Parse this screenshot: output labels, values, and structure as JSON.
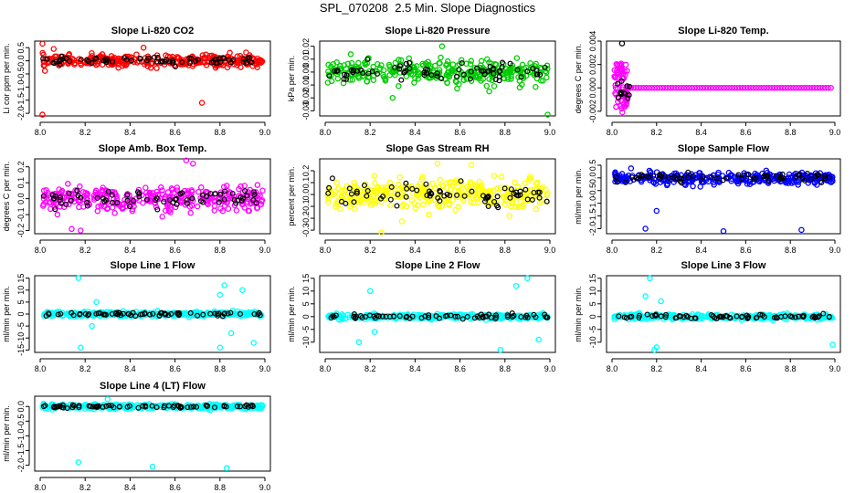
{
  "figure_title": "SPL_070208  2.5 Min. Slope Diagnostics",
  "chart_data": [
    {
      "type": "scatter",
      "title": "Slope Li-820 CO2",
      "ylabel": "Li cor ppm per min.",
      "color": "#ff0000",
      "xlim": [
        8.0,
        9.0
      ],
      "ylim": [
        -2.1,
        0.75
      ],
      "x_ticks": [
        "8.0",
        "8.2",
        "8.4",
        "8.6",
        "8.8",
        "9.0"
      ],
      "y_ticks": [
        -2.0,
        -1.5,
        -1.0,
        -0.5,
        0.0,
        0.5
      ],
      "y_tick_labels": [
        "-2.0",
        "-1.5",
        "-1.0",
        "-0.5",
        "0.0",
        "0.5"
      ],
      "spread": 0.22,
      "center": 0.0,
      "outliers": [
        [
          8.01,
          -2.05
        ],
        [
          8.01,
          0.65
        ],
        [
          8.72,
          -1.6
        ],
        [
          8.06,
          0.45
        ],
        [
          8.46,
          0.5
        ]
      ]
    },
    {
      "type": "scatter",
      "title": "Slope Li-820 Pressure",
      "ylabel": "kPa per min.",
      "color": "#00cc00",
      "xlim": [
        8.0,
        9.0
      ],
      "ylim": [
        -0.034,
        0.024
      ],
      "x_ticks": [
        "8.0",
        "8.2",
        "8.4",
        "8.6",
        "8.8",
        "9.0"
      ],
      "y_ticks": [
        -0.03,
        -0.02,
        -0.01,
        0.0,
        0.01,
        0.02
      ],
      "y_tick_labels": [
        "-0.03",
        "-0.02",
        "-0.01",
        "0.00",
        "0.01",
        "0.02"
      ],
      "spread": 0.009,
      "center": 0.0,
      "outliers": [
        [
          8.99,
          -0.033
        ],
        [
          8.3,
          -0.02
        ],
        [
          8.73,
          -0.015
        ],
        [
          8.52,
          0.02
        ]
      ]
    },
    {
      "type": "scatter",
      "title": "Slope Li-820 Temp.",
      "ylabel": "degrees C per min.",
      "color": "#ff00ff",
      "xlim": [
        8.0,
        9.0
      ],
      "ylim": [
        -0.0024,
        0.004
      ],
      "x_ticks": [
        "8.0",
        "8.2",
        "8.4",
        "8.6",
        "8.8",
        "9.0"
      ],
      "y_ticks": [
        -0.002,
        0.0,
        0.002,
        0.004
      ],
      "y_tick_labels": [
        "-0.002",
        "0.000",
        "0.002",
        "0.004"
      ],
      "spread": 0.0,
      "center": 0.0,
      "outliers": [
        [
          8.045,
          0.0038
        ]
      ]
    },
    {
      "type": "scatter",
      "title": "Slope Amb. Box Temp.",
      "ylabel": "degrees C per min.",
      "color": "#ff00ff",
      "xlim": [
        8.0,
        9.0
      ],
      "ylim": [
        -0.22,
        0.25
      ],
      "x_ticks": [
        "8.0",
        "8.2",
        "8.4",
        "8.6",
        "8.8",
        "9.0"
      ],
      "y_ticks": [
        -0.2,
        -0.1,
        0.0,
        0.1,
        0.2
      ],
      "y_tick_labels": [
        "-0.2",
        "-0.1",
        "0.0",
        "0.1",
        "0.2"
      ],
      "spread": 0.08,
      "center": 0.0,
      "outliers": [
        [
          8.65,
          0.24
        ],
        [
          8.68,
          0.22
        ],
        [
          8.14,
          -0.19
        ],
        [
          8.18,
          -0.2
        ]
      ]
    },
    {
      "type": "scatter",
      "title": "Slope Gas Stream RH",
      "ylabel": "percent per min.",
      "color": "#ffff00",
      "xlim": [
        8.0,
        9.0
      ],
      "ylim": [
        -0.33,
        0.3
      ],
      "x_ticks": [
        "8.0",
        "8.2",
        "8.4",
        "8.6",
        "8.8",
        "9.0"
      ],
      "y_ticks": [
        -0.3,
        -0.2,
        -0.1,
        0.0,
        0.1,
        0.2
      ],
      "y_tick_labels": [
        "-0.3",
        "-0.2",
        "-0.1",
        "0.0",
        "0.1",
        "0.2"
      ],
      "spread": 0.12,
      "center": 0.0,
      "outliers": [
        [
          8.25,
          -0.32
        ],
        [
          8.5,
          0.26
        ],
        [
          8.65,
          0.25
        ]
      ]
    },
    {
      "type": "scatter",
      "title": "Slope Sample Flow",
      "ylabel": "ml/min per min.",
      "color": "#0000ff",
      "xlim": [
        8.0,
        9.0
      ],
      "ylim": [
        -2.2,
        0.75
      ],
      "x_ticks": [
        "8.0",
        "8.2",
        "8.4",
        "8.6",
        "8.8",
        "9.0"
      ],
      "y_ticks": [
        -2.0,
        -1.5,
        -1.0,
        -0.5,
        0.0,
        0.5
      ],
      "y_tick_labels": [
        "-2.0",
        "-1.5",
        "-1.0",
        "-0.5",
        "0.0",
        "0.5"
      ],
      "spread": 0.22,
      "center": 0.0,
      "outliers": [
        [
          8.15,
          -2.0
        ],
        [
          8.5,
          -2.1
        ],
        [
          8.85,
          -2.05
        ],
        [
          8.2,
          -1.3
        ]
      ]
    },
    {
      "type": "scatter",
      "title": "Slope Line 1 Flow",
      "ylabel": "ml/min per min.",
      "color": "#00ffff",
      "xlim": [
        8.0,
        9.0
      ],
      "ylim": [
        -16,
        16
      ],
      "x_ticks": [
        "8.0",
        "8.2",
        "8.4",
        "8.6",
        "8.8",
        "9.0"
      ],
      "y_ticks": [
        -15,
        -10,
        -5,
        0,
        5,
        10,
        15
      ],
      "y_tick_labels": [
        "-15",
        "-10",
        "-5",
        "0",
        "5",
        "10",
        "15"
      ],
      "spread": 1.0,
      "center": 0.0,
      "outliers": [
        [
          8.17,
          15
        ],
        [
          8.18,
          -14
        ],
        [
          8.8,
          -14
        ],
        [
          8.95,
          -12
        ],
        [
          8.82,
          12
        ],
        [
          8.9,
          10
        ],
        [
          8.25,
          5
        ],
        [
          8.23,
          -5
        ],
        [
          8.85,
          -8
        ],
        [
          8.8,
          8
        ]
      ]
    },
    {
      "type": "scatter",
      "title": "Slope Line 2 Flow",
      "ylabel": "ml/min per min.",
      "color": "#00ffff",
      "xlim": [
        8.0,
        9.0
      ],
      "ylim": [
        -14,
        16
      ],
      "x_ticks": [
        "8.0",
        "8.2",
        "8.4",
        "8.6",
        "8.8",
        "9.0"
      ],
      "y_ticks": [
        -10,
        -5,
        0,
        5,
        10,
        15
      ],
      "y_tick_labels": [
        "-10",
        "-5",
        "0",
        "5",
        "10",
        "15"
      ],
      "spread": 1.0,
      "center": 0.0,
      "outliers": [
        [
          8.78,
          -13
        ],
        [
          8.2,
          10
        ],
        [
          8.22,
          -6
        ],
        [
          8.95,
          -9
        ],
        [
          8.9,
          15
        ],
        [
          8.85,
          12
        ],
        [
          8.15,
          -10
        ]
      ]
    },
    {
      "type": "scatter",
      "title": "Slope Line 3 Flow",
      "ylabel": "ml/min per min.",
      "color": "#00ffff",
      "xlim": [
        8.0,
        9.0
      ],
      "ylim": [
        -14,
        16
      ],
      "x_ticks": [
        "8.0",
        "8.2",
        "8.4",
        "8.6",
        "8.8",
        "9.0"
      ],
      "y_ticks": [
        -10,
        -5,
        0,
        5,
        10,
        15
      ],
      "y_tick_labels": [
        "-10",
        "-5",
        "0",
        "5",
        "10",
        "15"
      ],
      "spread": 1.0,
      "center": 0.0,
      "outliers": [
        [
          8.17,
          15
        ],
        [
          8.19,
          -13
        ],
        [
          8.99,
          -11
        ],
        [
          8.2,
          -12
        ],
        [
          8.15,
          8
        ],
        [
          8.22,
          6
        ]
      ]
    },
    {
      "type": "scatter",
      "title": "Slope Line 4 (LT) Flow",
      "ylabel": "ml/min per min.",
      "color": "#00ffff",
      "xlim": [
        8.0,
        9.0
      ],
      "ylim": [
        -2.2,
        0.35
      ],
      "x_ticks": [
        "8.0",
        "8.2",
        "8.4",
        "8.6",
        "8.8",
        "9.0"
      ],
      "y_ticks": [
        -2.0,
        -1.5,
        -1.0,
        -0.5,
        0.0
      ],
      "y_tick_labels": [
        "-2.0",
        "-1.5",
        "-1.0",
        "-0.5",
        "0.0"
      ],
      "spread": 0.08,
      "center": 0.0,
      "outliers": [
        [
          8.17,
          -1.9
        ],
        [
          8.5,
          -2.05
        ],
        [
          8.83,
          -2.1
        ],
        [
          8.3,
          0.25
        ]
      ]
    }
  ]
}
